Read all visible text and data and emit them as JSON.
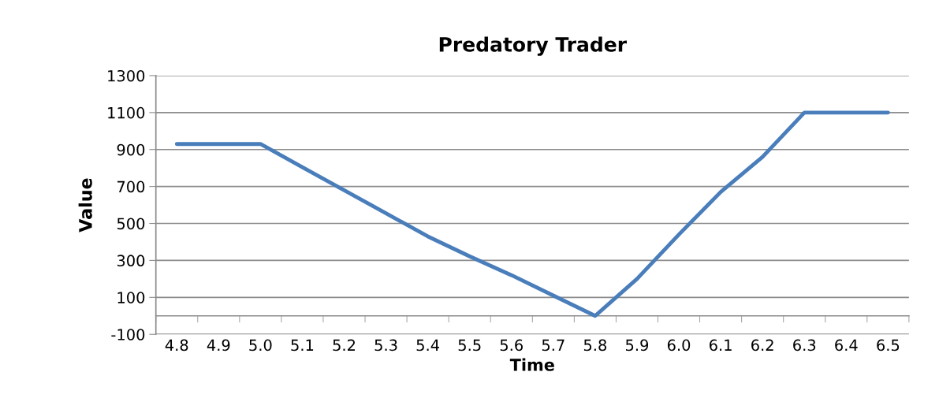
{
  "chart_data": {
    "type": "line",
    "title": "Predatory Trader",
    "xlabel": "Time",
    "ylabel": "Value",
    "categories": [
      "4.8",
      "4.9",
      "5.0",
      "5.1",
      "5.2",
      "5.3",
      "5.4",
      "5.5",
      "5.6",
      "5.7",
      "5.8",
      "5.9",
      "6.0",
      "6.1",
      "6.2",
      "6.3",
      "6.4",
      "6.5"
    ],
    "series": [
      {
        "color": "#4a7ebb",
        "values": [
          930,
          930,
          930,
          805,
          680,
          555,
          430,
          322,
          220,
          110,
          0,
          200,
          440,
          670,
          860,
          1100,
          1100,
          1100
        ]
      }
    ],
    "ylim": [
      -100,
      1300
    ],
    "yticks": [
      -100,
      100,
      300,
      500,
      700,
      900,
      1100,
      1300
    ],
    "grid": "y",
    "marker": "none",
    "line_style": "solid"
  }
}
